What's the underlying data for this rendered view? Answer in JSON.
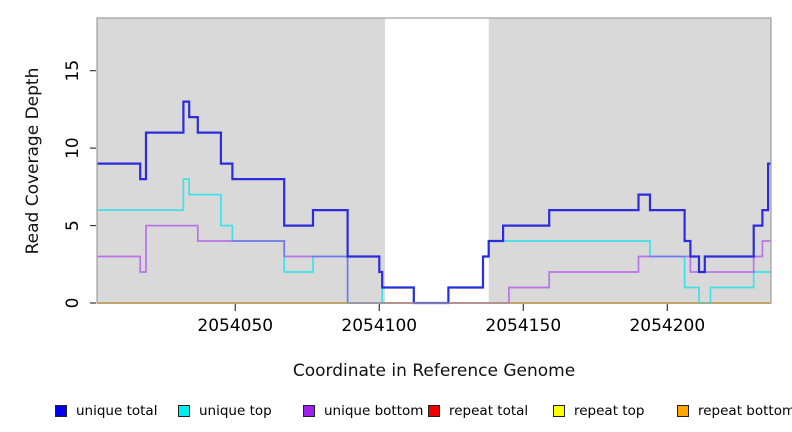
{
  "figure": {
    "y_axis_title": "Read Coverage Depth",
    "x_axis_title": "Coordinate in Reference Genome"
  },
  "chart_data": {
    "type": "line",
    "subtype": "step-coverage",
    "title": "",
    "xlabel": "Coordinate in Reference Genome",
    "ylabel": "Read Coverage Depth",
    "xlim": [
      2054002,
      2054236
    ],
    "ylim": [
      0,
      18.4
    ],
    "x_ticks": [
      2054050,
      2054100,
      2054150,
      2054200
    ],
    "y_ticks": [
      0,
      5,
      10,
      15
    ],
    "grid": false,
    "plot_bg_color": "#d9d9d9",
    "frame_color": "#a3a3a3",
    "tick_color": "#3a3a3a",
    "gap_region": {
      "start": 2054102,
      "end": 2054138,
      "color": "#ffffff"
    },
    "series": [
      {
        "name": "repeat total",
        "color": "#ee0000",
        "opacity": 1.0,
        "width": 1.4,
        "steps": [
          [
            2054002,
            0
          ]
        ]
      },
      {
        "name": "repeat top",
        "color": "#ffff00",
        "opacity": 1.0,
        "width": 1.4,
        "steps": [
          [
            2054002,
            0
          ]
        ]
      },
      {
        "name": "repeat bottom",
        "color": "#ffa500",
        "opacity": 1.0,
        "width": 1.8,
        "steps": [
          [
            2054002,
            0
          ]
        ]
      },
      {
        "name": "unique top",
        "color": "#00e5ee",
        "opacity": 0.72,
        "width": 1.7,
        "steps": [
          [
            2054002,
            6
          ],
          [
            2054032,
            8
          ],
          [
            2054034,
            7
          ],
          [
            2054045,
            5
          ],
          [
            2054049,
            4
          ],
          [
            2054067,
            2
          ],
          [
            2054077,
            3
          ],
          [
            2054089,
            0
          ],
          [
            2054101,
            1
          ],
          [
            2054112,
            0
          ],
          [
            2054124,
            1
          ],
          [
            2054136,
            3
          ],
          [
            2054138,
            4
          ],
          [
            2054194,
            3
          ],
          [
            2054206,
            1
          ],
          [
            2054211,
            0
          ],
          [
            2054215,
            1
          ],
          [
            2054230,
            2
          ]
        ]
      },
      {
        "name": "unique bottom",
        "color": "#a020f0",
        "opacity": 0.55,
        "width": 1.7,
        "steps": [
          [
            2054002,
            3
          ],
          [
            2054017,
            2
          ],
          [
            2054019,
            5
          ],
          [
            2054037,
            4
          ],
          [
            2054067,
            3
          ],
          [
            2054089,
            0
          ],
          [
            2054145,
            1
          ],
          [
            2054159,
            2
          ],
          [
            2054190,
            3
          ],
          [
            2054208,
            2
          ],
          [
            2054230,
            3
          ],
          [
            2054233,
            4
          ]
        ]
      },
      {
        "name": "unique total",
        "color": "#2323dd",
        "opacity": 0.95,
        "width": 2.2,
        "steps": [
          [
            2054002,
            9
          ],
          [
            2054017,
            8
          ],
          [
            2054019,
            11
          ],
          [
            2054032,
            13
          ],
          [
            2054034,
            12
          ],
          [
            2054037,
            11
          ],
          [
            2054045,
            9
          ],
          [
            2054049,
            8
          ],
          [
            2054067,
            5
          ],
          [
            2054077,
            6
          ],
          [
            2054089,
            3
          ],
          [
            2054100,
            2
          ],
          [
            2054101,
            1
          ],
          [
            2054112,
            0
          ],
          [
            2054124,
            1
          ],
          [
            2054136,
            3
          ],
          [
            2054138,
            4
          ],
          [
            2054143,
            5
          ],
          [
            2054159,
            6
          ],
          [
            2054190,
            7
          ],
          [
            2054194,
            6
          ],
          [
            2054206,
            4
          ],
          [
            2054208,
            3
          ],
          [
            2054211,
            2
          ],
          [
            2054213,
            3
          ],
          [
            2054230,
            5
          ],
          [
            2054233,
            6
          ],
          [
            2054235,
            9
          ]
        ]
      }
    ],
    "legend": {
      "position": "bottom",
      "items": [
        {
          "label": "unique total",
          "color": "#0000ee"
        },
        {
          "label": "unique top",
          "color": "#00eeee"
        },
        {
          "label": "unique bottom",
          "color": "#a020f0"
        },
        {
          "label": "repeat total",
          "color": "#ee0000"
        },
        {
          "label": "repeat top",
          "color": "#ffff00"
        },
        {
          "label": "repeat bottom",
          "color": "#ffa500"
        }
      ]
    }
  }
}
